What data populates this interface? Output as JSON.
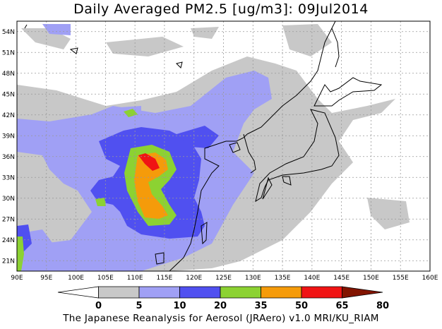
{
  "title": "Daily Averaged PM2.5 [ug/m3]: 09Jul2014",
  "footer": "The Japanese Reanalysis for Aerosol (JRAero) v1.0 MRI/KU_RIAM",
  "map": {
    "lon_labels": [
      "90E",
      "95E",
      "100E",
      "105E",
      "110E",
      "115E",
      "120E",
      "125E",
      "130E",
      "135E",
      "140E",
      "145E",
      "150E",
      "155E",
      "160E"
    ],
    "lat_labels": [
      "21N",
      "24N",
      "27N",
      "30N",
      "33N",
      "36N",
      "39N",
      "42N",
      "45N",
      "48N",
      "51N",
      "54N"
    ],
    "region": "East Asia"
  },
  "colorbar": {
    "levels": [
      "0",
      "5",
      "10",
      "20",
      "35",
      "50",
      "65",
      "80"
    ],
    "colors": [
      "#ffffff",
      "#c8c8c8",
      "#a0a0f5",
      "#5050f0",
      "#8cd232",
      "#f59b0a",
      "#f01414",
      "#821400"
    ]
  }
}
